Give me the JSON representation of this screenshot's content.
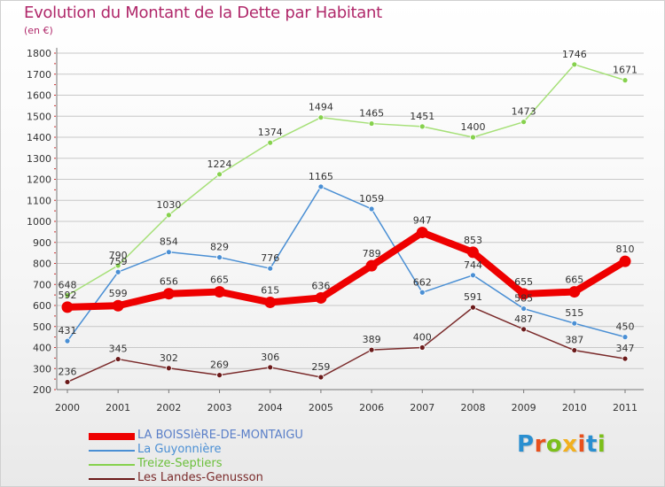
{
  "header": {
    "title": "Evolution du Montant de la Dette par Habitant",
    "subtitle": "(en €)"
  },
  "logo": {
    "text": "Proxiti",
    "letter_colors": [
      "#2a8fd0",
      "#e8501c",
      "#7cbf1a",
      "#f2b01e",
      "#e8501c",
      "#2a8fd0",
      "#7cbf1a"
    ]
  },
  "chart_data": {
    "type": "line",
    "title": "Evolution du Montant de la Dette par Habitant",
    "subtitle": "(en €)",
    "xlabel": "",
    "ylabel": "",
    "x": [
      "2000",
      "2001",
      "2002",
      "2003",
      "2004",
      "2005",
      "2006",
      "2007",
      "2008",
      "2009",
      "2010",
      "2011"
    ],
    "ylim": [
      200,
      1800
    ],
    "yticks": [
      200,
      300,
      400,
      500,
      600,
      700,
      800,
      900,
      1000,
      1100,
      1200,
      1300,
      1400,
      1500,
      1600,
      1700,
      1800
    ],
    "grid": "horizontal",
    "legend_position": "bottom-left",
    "series": [
      {
        "name": "LA BOISSIèRE-DE-MONTAIGU",
        "color": "#ee0000",
        "line_color": "#ee0000",
        "label_color": "#5a7fc8",
        "bold": true,
        "values": [
          592,
          599,
          656,
          665,
          615,
          636,
          789,
          947,
          853,
          655,
          665,
          810
        ]
      },
      {
        "name": "La Guyonnière",
        "color": "#4a8fd4",
        "line_color": "#4a8fd4",
        "label_color": "#4a8fd4",
        "bold": false,
        "values": [
          431,
          759,
          854,
          829,
          776,
          1165,
          1059,
          662,
          744,
          585,
          515,
          450
        ]
      },
      {
        "name": "Treize-Septiers",
        "color": "#86d14d",
        "line_color": "#a6e078",
        "label_color": "#6bbf3a",
        "bold": false,
        "values": [
          648,
          790,
          1030,
          1224,
          1374,
          1494,
          1465,
          1451,
          1400,
          1473,
          1746,
          1671
        ]
      },
      {
        "name": "Les Landes-Genusson",
        "color": "#6b1a1a",
        "line_color": "#7a2a2a",
        "label_color": "#7a2a2a",
        "bold": false,
        "values": [
          236,
          345,
          302,
          269,
          306,
          259,
          389,
          400,
          591,
          487,
          387,
          347
        ]
      }
    ]
  }
}
